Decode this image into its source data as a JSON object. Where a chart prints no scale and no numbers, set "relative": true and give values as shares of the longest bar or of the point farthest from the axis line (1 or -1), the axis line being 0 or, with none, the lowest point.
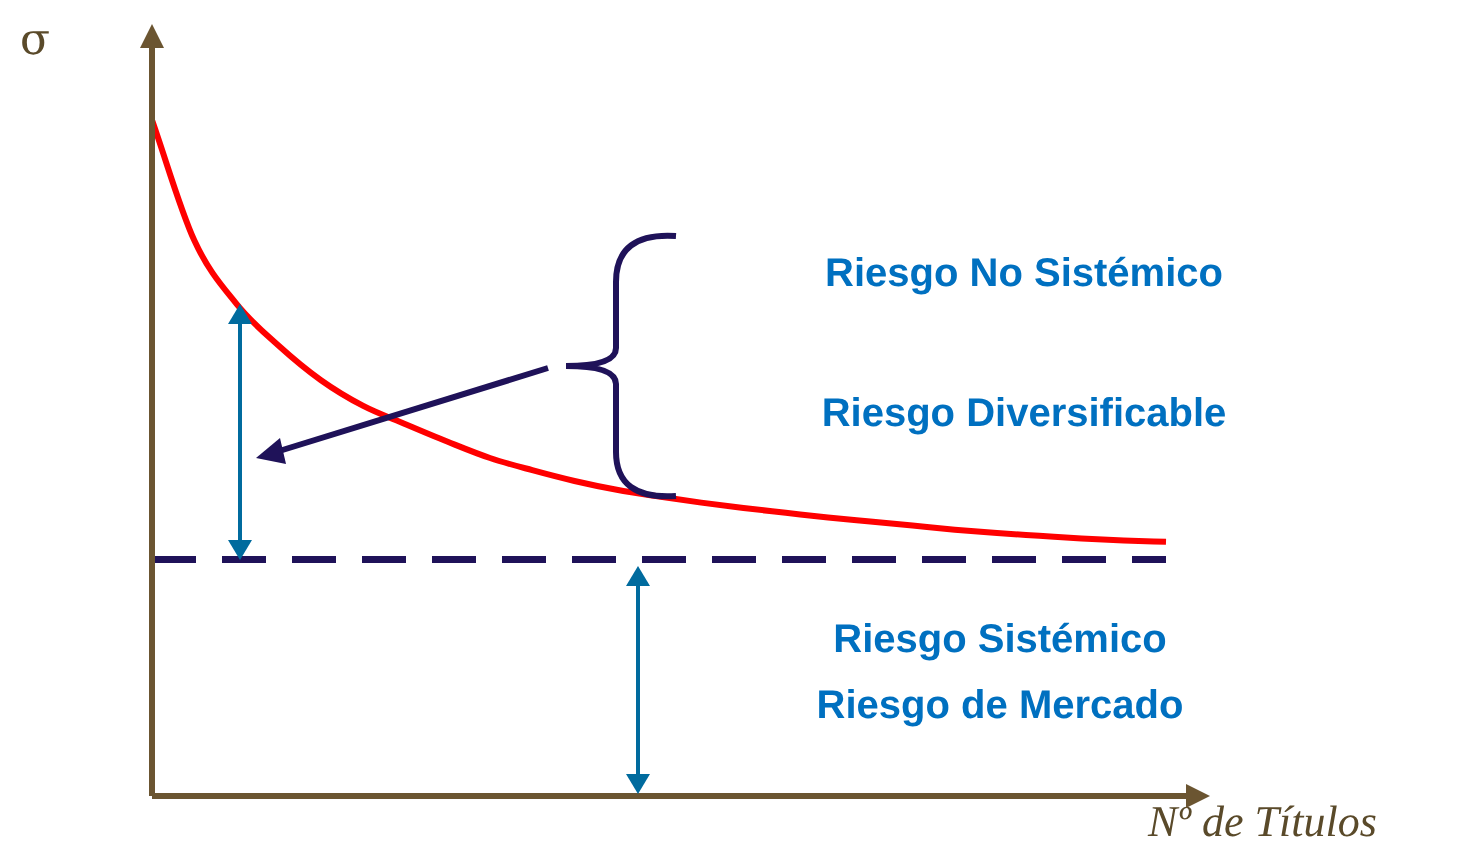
{
  "chart_data": {
    "type": "line",
    "relative": true,
    "xlabel": "Nº de Títulos",
    "ylabel": "σ",
    "categories": [
      null,
      null,
      null,
      null,
      null,
      null,
      null,
      null,
      null,
      null,
      null,
      null,
      null,
      null,
      null,
      null,
      null,
      null,
      null,
      null,
      null,
      null,
      null,
      null,
      null
    ],
    "series": [
      {
        "color": "#ff0000",
        "values": [
          1.0,
          0.822,
          0.728,
          0.666,
          0.615,
          0.577,
          0.55,
          0.524,
          0.5,
          0.482,
          0.466,
          0.453,
          0.443,
          0.434,
          0.426,
          0.419,
          0.412,
          0.406,
          0.4,
          0.394,
          0.389,
          0.385,
          0.381,
          0.378,
          0.376
        ]
      }
    ],
    "ref_lines": [
      {
        "axis": "y",
        "value": 0.35,
        "color": "#1f1259",
        "line_style": "dashed"
      }
    ],
    "annotations": [
      "Riesgo No Sistémico",
      "Riesgo Diversificable",
      "Riesgo Sistémico",
      "Riesgo de Mercado"
    ],
    "marker": "none",
    "legend": false
  }
}
